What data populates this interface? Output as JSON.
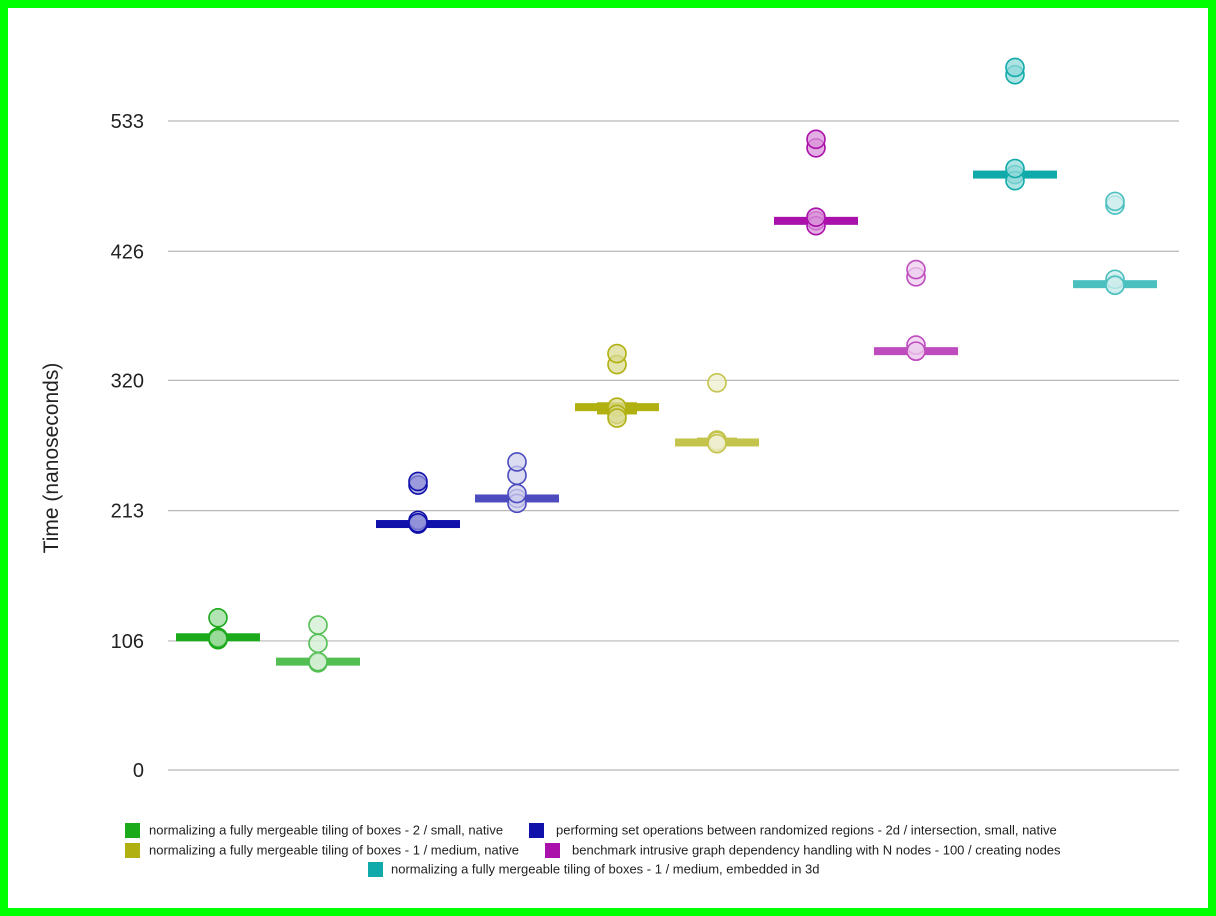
{
  "chart_data": {
    "type": "scatter",
    "ylabel": "Time (nanoseconds)",
    "xlabel": "",
    "ylim": [
      0,
      590
    ],
    "yticks": [
      0,
      106,
      213,
      320,
      426,
      533
    ],
    "grid": true,
    "legend_placement": "bottom",
    "legend": [
      {
        "name": "normalizing a fully mergeable tiling of boxes - 2 / small, native",
        "color": "#1aaa1a"
      },
      {
        "name": "performing set operations between randomized regions - 2d / intersection, small, native",
        "color": "#1010aa"
      },
      {
        "name": "normalizing a fully mergeable tiling of boxes - 1 / medium, native",
        "color": "#b0b010"
      },
      {
        "name": "benchmark intrusive graph dependency handling with N nodes - 100 / creating nodes",
        "color": "#aa10aa"
      },
      {
        "name": "normalizing a fully mergeable tiling of boxes - 1 / medium, embedded in 3d",
        "color": "#10aaaa"
      }
    ],
    "groups": [
      {
        "series_index": 0,
        "variant": "base",
        "median": 109,
        "box": [
          107,
          110
        ],
        "points": [
          109,
          107,
          109,
          108,
          125
        ]
      },
      {
        "series_index": 0,
        "variant": "light",
        "median": 89,
        "box": [
          88,
          90
        ],
        "points": [
          89,
          88,
          104,
          119,
          89
        ]
      },
      {
        "series_index": 1,
        "variant": "base",
        "median": 202,
        "box": [
          201,
          203
        ],
        "points": [
          202,
          205,
          203,
          234,
          237
        ]
      },
      {
        "series_index": 1,
        "variant": "light",
        "median": 223,
        "box": [
          222,
          225
        ],
        "points": [
          223,
          219,
          227,
          242,
          253
        ]
      },
      {
        "series_index": 2,
        "variant": "base",
        "median": 298,
        "box": [
          292,
          302
        ],
        "points": [
          298,
          292,
          289,
          333,
          342
        ]
      },
      {
        "series_index": 2,
        "variant": "light",
        "median": 269,
        "box": [
          266,
          273
        ],
        "points": [
          269,
          318,
          271,
          270,
          268
        ]
      },
      {
        "series_index": 3,
        "variant": "base",
        "median": 451,
        "box": [
          449,
          453
        ],
        "points": [
          451,
          447,
          454,
          511,
          518
        ]
      },
      {
        "series_index": 3,
        "variant": "light",
        "median": 344,
        "box": [
          343,
          346
        ],
        "points": [
          344,
          349,
          405,
          411,
          344
        ]
      },
      {
        "series_index": 4,
        "variant": "base",
        "median": 489,
        "box": [
          486,
          492
        ],
        "points": [
          489,
          484,
          494,
          571,
          577
        ]
      },
      {
        "series_index": 4,
        "variant": "light",
        "median": 399,
        "box": [
          396,
          402
        ],
        "points": [
          399,
          403,
          464,
          467,
          398
        ]
      }
    ]
  }
}
